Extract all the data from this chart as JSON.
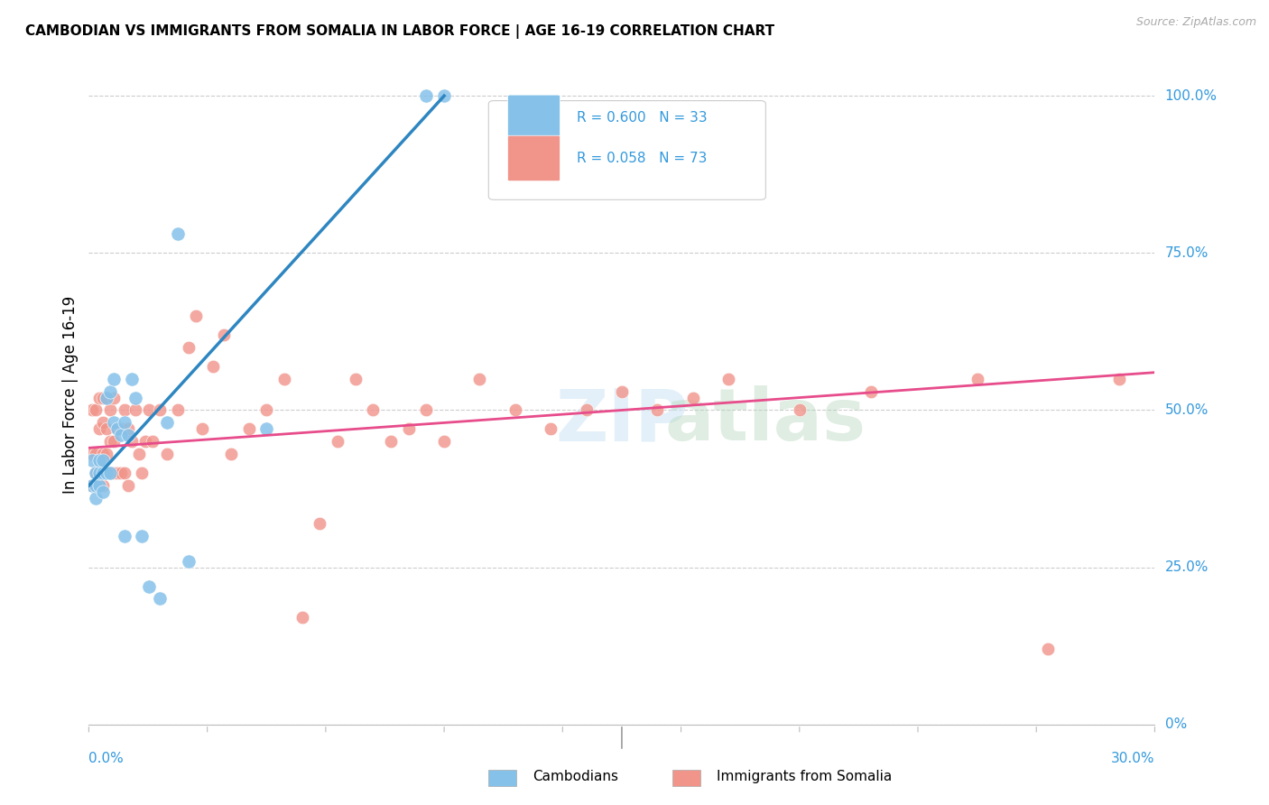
{
  "title": "CAMBODIAN VS IMMIGRANTS FROM SOMALIA IN LABOR FORCE | AGE 16-19 CORRELATION CHART",
  "source": "Source: ZipAtlas.com",
  "ylabel": "In Labor Force | Age 16-19",
  "color_cambodian": "#85c1e9",
  "color_somalia": "#f1948a",
  "trendline_cambodian": "#2e86c1",
  "trendline_somalia": "#e74c8b",
  "xmin": 0.0,
  "xmax": 0.3,
  "ymin": 0.0,
  "ymax": 1.05,
  "ytick_vals": [
    0.0,
    0.25,
    0.5,
    0.75,
    1.0
  ],
  "ytick_labels": [
    "0%",
    "25.0%",
    "50.0%",
    "75.0%",
    "100.0%"
  ],
  "cambodian_x": [
    0.001,
    0.001,
    0.002,
    0.002,
    0.002,
    0.003,
    0.003,
    0.003,
    0.004,
    0.004,
    0.004,
    0.005,
    0.005,
    0.006,
    0.006,
    0.007,
    0.007,
    0.008,
    0.009,
    0.01,
    0.01,
    0.011,
    0.012,
    0.013,
    0.015,
    0.017,
    0.02,
    0.022,
    0.025,
    0.028,
    0.05,
    0.095,
    0.1
  ],
  "cambodian_y": [
    0.38,
    0.42,
    0.36,
    0.38,
    0.4,
    0.38,
    0.4,
    0.42,
    0.37,
    0.4,
    0.42,
    0.4,
    0.52,
    0.4,
    0.53,
    0.48,
    0.55,
    0.47,
    0.46,
    0.3,
    0.48,
    0.46,
    0.55,
    0.52,
    0.3,
    0.22,
    0.2,
    0.48,
    0.78,
    0.26,
    0.47,
    1.0,
    1.0
  ],
  "somalia_x": [
    0.001,
    0.001,
    0.001,
    0.002,
    0.002,
    0.002,
    0.003,
    0.003,
    0.003,
    0.003,
    0.004,
    0.004,
    0.004,
    0.004,
    0.005,
    0.005,
    0.005,
    0.005,
    0.006,
    0.006,
    0.006,
    0.007,
    0.007,
    0.007,
    0.008,
    0.008,
    0.009,
    0.009,
    0.01,
    0.01,
    0.011,
    0.011,
    0.012,
    0.013,
    0.014,
    0.015,
    0.016,
    0.017,
    0.018,
    0.02,
    0.022,
    0.025,
    0.028,
    0.03,
    0.032,
    0.035,
    0.038,
    0.04,
    0.045,
    0.05,
    0.055,
    0.06,
    0.065,
    0.07,
    0.075,
    0.08,
    0.085,
    0.09,
    0.095,
    0.1,
    0.11,
    0.12,
    0.13,
    0.14,
    0.15,
    0.16,
    0.17,
    0.18,
    0.2,
    0.22,
    0.25,
    0.27,
    0.29
  ],
  "somalia_y": [
    0.38,
    0.43,
    0.5,
    0.4,
    0.43,
    0.5,
    0.38,
    0.42,
    0.47,
    0.52,
    0.38,
    0.43,
    0.48,
    0.52,
    0.4,
    0.43,
    0.47,
    0.52,
    0.4,
    0.45,
    0.5,
    0.4,
    0.45,
    0.52,
    0.4,
    0.47,
    0.4,
    0.47,
    0.4,
    0.5,
    0.38,
    0.47,
    0.45,
    0.5,
    0.43,
    0.4,
    0.45,
    0.5,
    0.45,
    0.5,
    0.43,
    0.5,
    0.6,
    0.65,
    0.47,
    0.57,
    0.62,
    0.43,
    0.47,
    0.5,
    0.55,
    0.17,
    0.32,
    0.45,
    0.55,
    0.5,
    0.45,
    0.47,
    0.5,
    0.45,
    0.55,
    0.5,
    0.47,
    0.5,
    0.53,
    0.5,
    0.52,
    0.55,
    0.5,
    0.53,
    0.55,
    0.12,
    0.55
  ],
  "trendline_cam_x0": 0.0,
  "trendline_cam_y0": 0.38,
  "trendline_cam_x1": 0.1,
  "trendline_cam_y1": 1.0,
  "trendline_som_x0": 0.0,
  "trendline_som_y0": 0.44,
  "trendline_som_x1": 0.3,
  "trendline_som_y1": 0.56
}
